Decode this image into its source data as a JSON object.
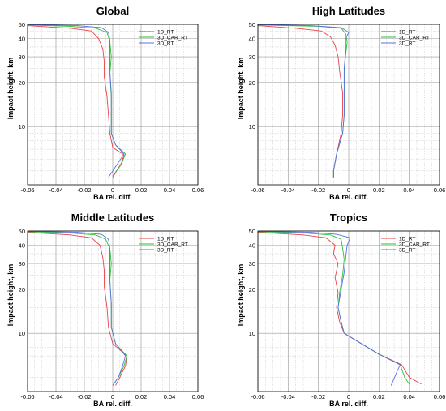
{
  "colors": {
    "1D_RT": "#e8434a",
    "3D_CAR_RT": "#2bbf3a",
    "3D_RT": "#5b6fe0"
  },
  "chart_data": [
    {
      "type": "line",
      "title": "Global",
      "xlabel": "BA rel. diff.",
      "ylabel": "Impact height, km",
      "xlim": [
        -0.06,
        0.06
      ],
      "y_scale": "log",
      "ylim": [
        4,
        50
      ],
      "xticks": [
        "-0.06",
        "-0.04",
        "-0.02",
        "0",
        "0.02",
        "0.04",
        "0.06"
      ],
      "yticks": [
        "10",
        "20",
        "30",
        "40",
        "50"
      ],
      "grid": true,
      "legend": "top-right",
      "series": [
        {
          "name": "1D_RT",
          "points": [
            [
              -0.06,
              49
            ],
            [
              -0.03,
              47
            ],
            [
              -0.015,
              45
            ],
            [
              -0.01,
              40
            ],
            [
              -0.007,
              34
            ],
            [
              -0.006,
              28
            ],
            [
              -0.006,
              22
            ],
            [
              -0.004,
              16
            ],
            [
              -0.003,
              12
            ],
            [
              -0.002,
              9
            ],
            [
              0,
              7.2
            ],
            [
              0.008,
              6.4
            ],
            [
              0.006,
              5.6
            ],
            [
              0.0,
              4.5
            ]
          ]
        },
        {
          "name": "3D_CAR_RT",
          "points": [
            [
              -0.06,
              49.5
            ],
            [
              -0.03,
              48.5
            ],
            [
              -0.012,
              47
            ],
            [
              -0.004,
              44
            ],
            [
              -0.002,
              38
            ],
            [
              -0.001,
              30
            ],
            [
              -0.002,
              23
            ],
            [
              -0.001,
              16
            ],
            [
              -0.001,
              11
            ],
            [
              -0.001,
              9
            ],
            [
              0.002,
              7.5
            ],
            [
              0.009,
              6.5
            ],
            [
              0.006,
              5.5
            ],
            [
              0.0,
              4.6
            ]
          ]
        },
        {
          "name": "3D_RT",
          "points": [
            [
              -0.06,
              49.8
            ],
            [
              -0.025,
              49
            ],
            [
              -0.008,
              47.5
            ],
            [
              -0.003,
              44
            ],
            [
              -0.002,
              39
            ],
            [
              -0.002,
              31
            ],
            [
              -0.002,
              24
            ],
            [
              -0.001,
              17
            ],
            [
              -0.001,
              12
            ],
            [
              -0.001,
              9
            ],
            [
              0.002,
              7.5
            ],
            [
              0.008,
              6.5
            ],
            [
              0.003,
              5.5
            ],
            [
              -0.003,
              4.5
            ]
          ]
        }
      ]
    },
    {
      "type": "line",
      "title": "High Latitudes",
      "xlabel": "BA rel. diff.",
      "ylabel": "Impact height, km",
      "xlim": [
        -0.06,
        0.06
      ],
      "y_scale": "log",
      "ylim": [
        4,
        50
      ],
      "xticks": [
        "-0.06",
        "-0.04",
        "-0.02",
        "0",
        "0.02",
        "0.04",
        "0.06"
      ],
      "yticks": [
        "10",
        "20",
        "30",
        "40",
        "50"
      ],
      "grid": true,
      "legend": "top-right",
      "series": [
        {
          "name": "1D_RT",
          "points": [
            [
              -0.06,
              49
            ],
            [
              -0.035,
              47
            ],
            [
              -0.018,
              45
            ],
            [
              -0.012,
              41
            ],
            [
              -0.009,
              36
            ],
            [
              -0.007,
              30
            ],
            [
              -0.006,
              24
            ],
            [
              -0.004,
              17
            ],
            [
              -0.004,
              12
            ],
            [
              -0.005,
              9
            ],
            [
              -0.008,
              6.5
            ],
            [
              -0.01,
              5
            ],
            [
              -0.01,
              4.5
            ]
          ]
        },
        {
          "name": "3D_CAR_RT",
          "points": [
            [
              -0.06,
              49.5
            ],
            [
              -0.02,
              48.5
            ],
            [
              -0.005,
              47
            ],
            [
              -0.002,
              43
            ],
            [
              -0.001,
              38
            ],
            [
              -0.002,
              31
            ],
            [
              -0.003,
              24
            ],
            [
              -0.003,
              17
            ],
            [
              -0.003,
              12
            ],
            [
              -0.004,
              9
            ],
            [
              -0.008,
              6.5
            ],
            [
              -0.01,
              5
            ],
            [
              -0.01,
              4.5
            ]
          ]
        },
        {
          "name": "3D_RT",
          "points": [
            [
              -0.06,
              49.8
            ],
            [
              -0.025,
              49
            ],
            [
              -0.005,
              47.5
            ],
            [
              0.0,
              44
            ],
            [
              -0.002,
              40
            ],
            [
              -0.002,
              33
            ],
            [
              -0.003,
              25
            ],
            [
              -0.003,
              18
            ],
            [
              -0.003,
              12
            ],
            [
              -0.004,
              9
            ],
            [
              -0.008,
              6.5
            ],
            [
              -0.01,
              5
            ],
            [
              -0.01,
              4.5
            ]
          ]
        }
      ]
    },
    {
      "type": "line",
      "title": "Middle Latitudes",
      "xlabel": "BA rel. diff.",
      "ylabel": "Impact height, km",
      "xlim": [
        -0.06,
        0.06
      ],
      "y_scale": "log",
      "ylim": [
        4,
        50
      ],
      "xticks": [
        "-0.06",
        "-0.04",
        "-0.02",
        "0",
        "0.02",
        "0.04",
        "0.06"
      ],
      "yticks": [
        "10",
        "20",
        "30",
        "40",
        "50"
      ],
      "grid": true,
      "legend": "top-right",
      "series": [
        {
          "name": "1D_RT",
          "points": [
            [
              -0.06,
              49
            ],
            [
              -0.03,
              47
            ],
            [
              -0.015,
              45
            ],
            [
              -0.009,
              40
            ],
            [
              -0.007,
              33
            ],
            [
              -0.006,
              27
            ],
            [
              -0.006,
              21
            ],
            [
              -0.004,
              15
            ],
            [
              -0.003,
              11
            ],
            [
              0,
              8.5
            ],
            [
              0.01,
              7
            ],
            [
              0.009,
              6
            ],
            [
              0.005,
              5
            ],
            [
              0.002,
              4.4
            ]
          ]
        },
        {
          "name": "3D_CAR_RT",
          "points": [
            [
              -0.06,
              49.5
            ],
            [
              -0.03,
              48.5
            ],
            [
              -0.012,
              47
            ],
            [
              -0.005,
              44
            ],
            [
              -0.002,
              38
            ],
            [
              -0.001,
              30
            ],
            [
              -0.002,
              23
            ],
            [
              -0.001,
              16
            ],
            [
              -0.001,
              11
            ],
            [
              0.002,
              8.5
            ],
            [
              0.01,
              7
            ],
            [
              0.008,
              6
            ],
            [
              0.004,
              5
            ],
            [
              0.0,
              4.4
            ]
          ]
        },
        {
          "name": "3D_RT",
          "points": [
            [
              -0.06,
              49.8
            ],
            [
              -0.025,
              49
            ],
            [
              -0.008,
              47.5
            ],
            [
              -0.003,
              44
            ],
            [
              -0.002,
              38
            ],
            [
              -0.002,
              30
            ],
            [
              -0.002,
              23
            ],
            [
              -0.001,
              16
            ],
            [
              -0.001,
              11
            ],
            [
              0.002,
              8.5
            ],
            [
              0.009,
              7
            ],
            [
              0.007,
              6
            ],
            [
              0.004,
              5
            ],
            [
              0.0,
              4.4
            ]
          ]
        }
      ]
    },
    {
      "type": "line",
      "title": "Tropics",
      "xlabel": "BA rel. diff.",
      "ylabel": "Impact height, km",
      "xlim": [
        -0.06,
        0.06
      ],
      "y_scale": "log",
      "ylim": [
        4,
        50
      ],
      "xticks": [
        "-0.06",
        "-0.04",
        "-0.02",
        "0",
        "0.02",
        "0.04",
        "0.06"
      ],
      "yticks": [
        "10",
        "20",
        "30",
        "40",
        "50"
      ],
      "grid": true,
      "legend": "top-right",
      "series": [
        {
          "name": "1D_RT",
          "points": [
            [
              -0.06,
              49
            ],
            [
              -0.03,
              47
            ],
            [
              -0.015,
              45
            ],
            [
              -0.009,
              40
            ],
            [
              -0.01,
              35
            ],
            [
              -0.007,
              30
            ],
            [
              -0.009,
              24
            ],
            [
              -0.007,
              19
            ],
            [
              -0.008,
              15
            ],
            [
              -0.006,
              12
            ],
            [
              -0.003,
              10
            ],
            [
              0.02,
              7.2
            ],
            [
              0.035,
              6.1
            ],
            [
              0.04,
              5
            ],
            [
              0.048,
              4.5
            ]
          ]
        },
        {
          "name": "3D_CAR_RT",
          "points": [
            [
              -0.06,
              49.5
            ],
            [
              -0.03,
              48.5
            ],
            [
              -0.012,
              47
            ],
            [
              -0.005,
              44
            ],
            [
              -0.004,
              38
            ],
            [
              -0.003,
              32
            ],
            [
              -0.004,
              25
            ],
            [
              -0.006,
              19
            ],
            [
              -0.007,
              15
            ],
            [
              -0.005,
              12
            ],
            [
              -0.003,
              10
            ],
            [
              0.02,
              7.2
            ],
            [
              0.034,
              6.1
            ],
            [
              0.037,
              5
            ],
            [
              0.04,
              4.5
            ]
          ]
        },
        {
          "name": "3D_RT",
          "points": [
            [
              -0.06,
              49.8
            ],
            [
              -0.025,
              49
            ],
            [
              -0.008,
              47.5
            ],
            [
              0.001,
              45
            ],
            [
              -0.001,
              40
            ],
            [
              -0.002,
              33
            ],
            [
              -0.003,
              26
            ],
            [
              -0.005,
              20
            ],
            [
              -0.007,
              15
            ],
            [
              -0.005,
              12
            ],
            [
              -0.003,
              10
            ],
            [
              0.02,
              7.2
            ],
            [
              0.034,
              6.1
            ],
            [
              0.032,
              5.5
            ],
            [
              0.028,
              4.4
            ]
          ]
        }
      ]
    }
  ]
}
